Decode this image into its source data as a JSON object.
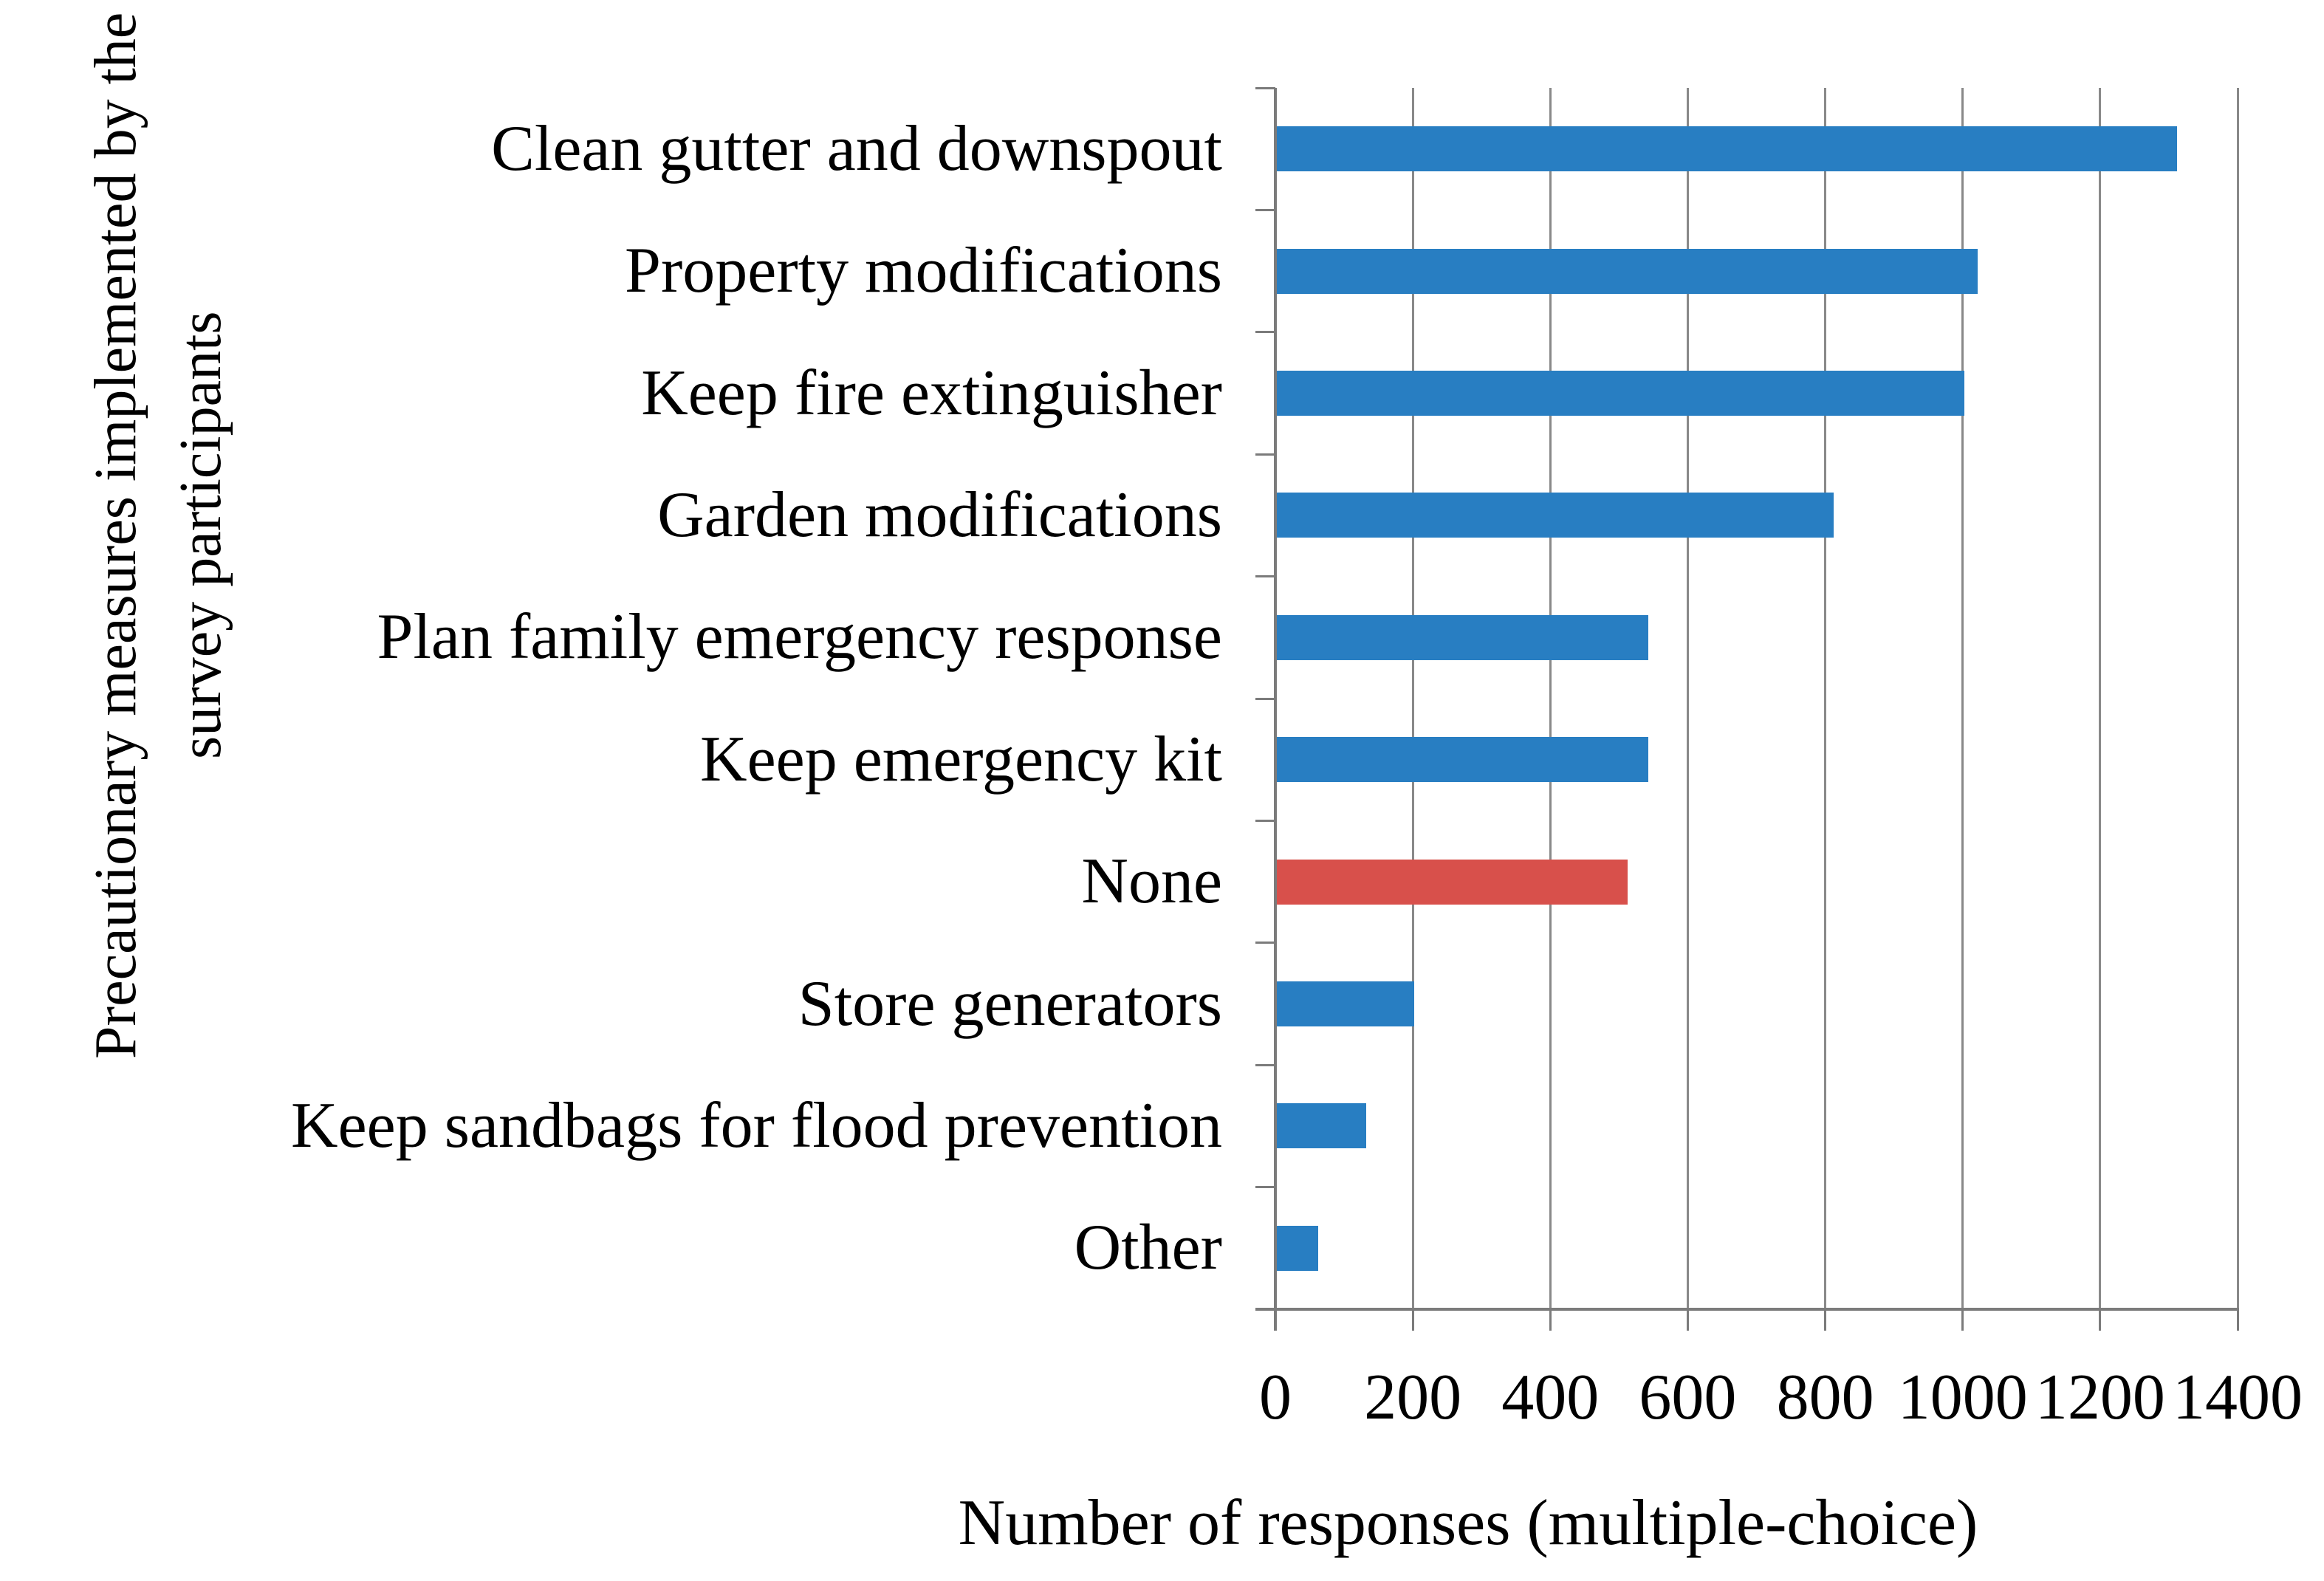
{
  "chart_data": {
    "type": "bar",
    "orientation": "horizontal",
    "xlabel": "Number of responses (multiple-choice)",
    "ylabel_line1": "Precautionary measures implemented by the",
    "ylabel_line2": "survey participants",
    "categories": [
      "Clean gutter and downspout",
      "Property modifications",
      "Keep fire extinguisher",
      "Garden modifications",
      "Plan family emergency response",
      "Keep emergency kit",
      "None",
      "Store generators",
      "Keep sandbags for flood prevention",
      "Other"
    ],
    "values": [
      1310,
      1020,
      1000,
      810,
      540,
      540,
      510,
      200,
      130,
      60
    ],
    "bar_colors": [
      "#287EC2",
      "#287EC2",
      "#287EC2",
      "#287EC2",
      "#287EC2",
      "#287EC2",
      "#D8504B",
      "#287EC2",
      "#287EC2",
      "#287EC2"
    ],
    "highlighted_category": "None",
    "x_tick_labels": [
      "0",
      "200",
      "400",
      "600",
      "800",
      "1000",
      "1200",
      "1400"
    ],
    "x_tick_values": [
      0,
      200,
      400,
      600,
      800,
      1000,
      1200,
      1400
    ],
    "xlim": [
      0,
      1400
    ],
    "grid": "vertical",
    "legend": "none",
    "colors": {
      "bar_blue": "#287EC2",
      "bar_red": "#D8504B",
      "gridline": "#898989",
      "axis": "#7B7B7B",
      "text": "#000000",
      "background": "#ffffff"
    }
  }
}
